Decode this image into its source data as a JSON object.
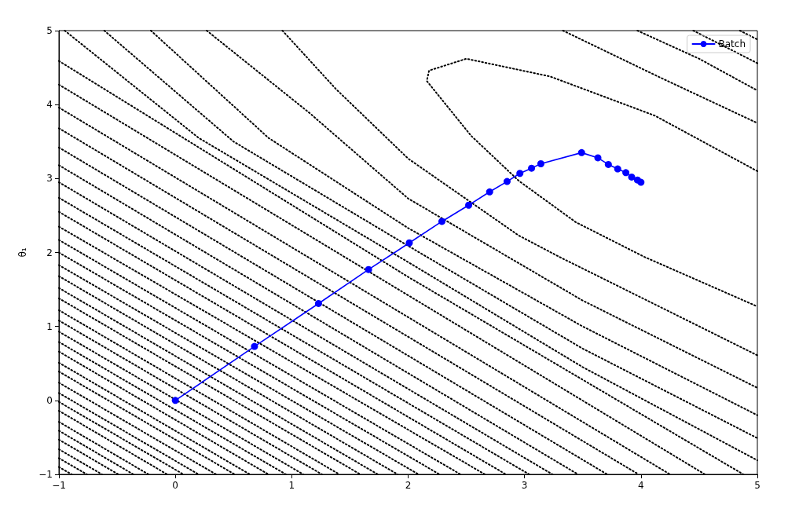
{
  "chart_data": {
    "type": "line",
    "ylabel": "θ₁",
    "xlim": [
      -1,
      5
    ],
    "ylim": [
      -1,
      5
    ],
    "xticks": [
      -1,
      0,
      1,
      2,
      3,
      4,
      5
    ],
    "yticks": [
      -1,
      0,
      1,
      2,
      3,
      4,
      5
    ],
    "grid": false,
    "legend": "top right",
    "series": [
      {
        "color": "#000000",
        "line_style": "dotted",
        "marker": "none",
        "x": [
          5,
          4.12,
          3.22,
          2.5,
          2.18,
          2.16,
          2.54,
          2.95,
          3.44,
          4.03,
          5
        ],
        "values": [
          3.1,
          3.85,
          4.38,
          4.62,
          4.46,
          4.32,
          3.58,
          2.97,
          2.41,
          1.94,
          1.27
        ]
      },
      {
        "color": "#000000",
        "line_style": "dotted",
        "marker": "none",
        "x": [
          0.92,
          1.38,
          2.0,
          2.95,
          3.3,
          5
        ],
        "values": [
          5,
          4.21,
          3.27,
          2.23,
          1.94,
          0.61
        ]
      },
      {
        "color": "#000000",
        "line_style": "dotted",
        "marker": "none",
        "x": [
          3.33,
          4.16,
          5
        ],
        "values": [
          5,
          4.37,
          3.75
        ]
      },
      {
        "color": "#000000",
        "line_style": "dotted",
        "marker": "none",
        "x": [
          0.27,
          1.15,
          2.0,
          3.5,
          5
        ],
        "values": [
          5,
          3.89,
          2.73,
          1.35,
          0.17
        ]
      },
      {
        "color": "#000000",
        "line_style": "dotted",
        "marker": "none",
        "x": [
          3.97,
          4.5,
          5
        ],
        "values": [
          5,
          4.62,
          4.19
        ]
      },
      {
        "color": "#000000",
        "line_style": "dotted",
        "marker": "none",
        "x": [
          -0.21,
          0.8,
          2.0,
          3.5,
          5
        ],
        "values": [
          5,
          3.55,
          2.33,
          1.0,
          -0.2
        ]
      },
      {
        "color": "#000000",
        "line_style": "dotted",
        "marker": "none",
        "x": [
          4.45,
          5
        ],
        "values": [
          5,
          4.56
        ]
      },
      {
        "color": "#000000",
        "line_style": "dotted",
        "marker": "none",
        "x": [
          -0.61,
          0.5,
          2.0,
          3.5,
          5
        ],
        "values": [
          5,
          3.5,
          2.09,
          0.7,
          -0.51
        ]
      },
      {
        "color": "#000000",
        "line_style": "dotted",
        "marker": "none",
        "x": [
          4.85,
          5
        ],
        "values": [
          5,
          4.88
        ]
      },
      {
        "color": "#000000",
        "line_style": "dotted",
        "marker": "none",
        "x": [
          -0.95,
          0.2,
          2.0,
          3.5,
          5
        ],
        "values": [
          5,
          3.55,
          1.87,
          0.45,
          -0.81
        ]
      },
      {
        "color": "#000000",
        "line_style": "dotted",
        "marker": "none",
        "x": [
          -1,
          2.0,
          4.88
        ],
        "values": [
          4.59,
          1.67,
          -1
        ]
      },
      {
        "color": "#000000",
        "line_style": "dotted",
        "marker": "none",
        "x": [
          -1,
          4.55
        ],
        "values": [
          4.27,
          -1
        ]
      },
      {
        "color": "#000000",
        "line_style": "dotted",
        "marker": "none",
        "x": [
          -1,
          4.25
        ],
        "values": [
          3.96,
          -1
        ]
      },
      {
        "color": "#000000",
        "line_style": "dotted",
        "marker": "none",
        "x": [
          -1,
          3.98
        ],
        "values": [
          3.68,
          -1
        ]
      },
      {
        "color": "#000000",
        "line_style": "dotted",
        "marker": "none",
        "x": [
          -1,
          3.71
        ],
        "values": [
          3.42,
          -1
        ]
      },
      {
        "color": "#000000",
        "line_style": "dotted",
        "marker": "none",
        "x": [
          -1,
          3.46
        ],
        "values": [
          3.18,
          -1
        ]
      },
      {
        "color": "#000000",
        "line_style": "dotted",
        "marker": "none",
        "x": [
          -1,
          3.24
        ],
        "values": [
          2.95,
          -1
        ]
      },
      {
        "color": "#000000",
        "line_style": "dotted",
        "marker": "none",
        "x": [
          -1,
          3.04
        ],
        "values": [
          2.74,
          -1
        ]
      },
      {
        "color": "#000000",
        "line_style": "dotted",
        "marker": "none",
        "x": [
          -1,
          2.84
        ],
        "values": [
          2.55,
          -1
        ]
      },
      {
        "color": "#000000",
        "line_style": "dotted",
        "marker": "none",
        "x": [
          -1,
          2.66
        ],
        "values": [
          2.35,
          -1
        ]
      },
      {
        "color": "#000000",
        "line_style": "dotted",
        "marker": "none",
        "x": [
          -1,
          2.45
        ],
        "values": [
          2.17,
          -1
        ]
      },
      {
        "color": "#000000",
        "line_style": "dotted",
        "marker": "none",
        "x": [
          -1,
          2.27
        ],
        "values": [
          2.0,
          -1
        ]
      },
      {
        "color": "#000000",
        "line_style": "dotted",
        "marker": "none",
        "x": [
          -1,
          2.09
        ],
        "values": [
          1.83,
          -1
        ]
      },
      {
        "color": "#000000",
        "line_style": "dotted",
        "marker": "none",
        "x": [
          -1,
          1.91
        ],
        "values": [
          1.68,
          -1
        ]
      },
      {
        "color": "#000000",
        "line_style": "dotted",
        "marker": "none",
        "x": [
          -1,
          1.74
        ],
        "values": [
          1.52,
          -1
        ]
      },
      {
        "color": "#000000",
        "line_style": "dotted",
        "marker": "none",
        "x": [
          -1,
          1.59
        ],
        "values": [
          1.38,
          -1
        ]
      },
      {
        "color": "#000000",
        "line_style": "dotted",
        "marker": "none",
        "x": [
          -1,
          1.41
        ],
        "values": [
          1.22,
          -1
        ]
      },
      {
        "color": "#000000",
        "line_style": "dotted",
        "marker": "none",
        "x": [
          -1,
          1.26
        ],
        "values": [
          1.08,
          -1
        ]
      },
      {
        "color": "#000000",
        "line_style": "dotted",
        "marker": "none",
        "x": [
          -1,
          1.1
        ],
        "values": [
          0.93,
          -1
        ]
      },
      {
        "color": "#000000",
        "line_style": "dotted",
        "marker": "none",
        "x": [
          -1,
          0.95
        ],
        "values": [
          0.79,
          -1
        ]
      },
      {
        "color": "#000000",
        "line_style": "dotted",
        "marker": "none",
        "x": [
          -1,
          0.8
        ],
        "values": [
          0.66,
          -1
        ]
      },
      {
        "color": "#000000",
        "line_style": "dotted",
        "marker": "none",
        "x": [
          -1,
          0.64
        ],
        "values": [
          0.51,
          -1
        ]
      },
      {
        "color": "#000000",
        "line_style": "dotted",
        "marker": "none",
        "x": [
          -1,
          0.51
        ],
        "values": [
          0.39,
          -1
        ]
      },
      {
        "color": "#000000",
        "line_style": "dotted",
        "marker": "none",
        "x": [
          -1,
          0.35
        ],
        "values": [
          0.24,
          -1
        ]
      },
      {
        "color": "#000000",
        "line_style": "dotted",
        "marker": "none",
        "x": [
          -1,
          0.2
        ],
        "values": [
          0.1,
          -1
        ]
      },
      {
        "color": "#000000",
        "line_style": "dotted",
        "marker": "none",
        "x": [
          -1,
          0.07
        ],
        "values": [
          -0.02,
          -1
        ]
      },
      {
        "color": "#000000",
        "line_style": "dotted",
        "marker": "none",
        "x": [
          -1,
          -0.07
        ],
        "values": [
          -0.14,
          -1
        ]
      },
      {
        "color": "#000000",
        "line_style": "dotted",
        "marker": "none",
        "x": [
          -1,
          -0.23
        ],
        "values": [
          -0.29,
          -1
        ]
      },
      {
        "color": "#000000",
        "line_style": "dotted",
        "marker": "none",
        "x": [
          -1,
          -0.36
        ],
        "values": [
          -0.41,
          -1
        ]
      },
      {
        "color": "#000000",
        "line_style": "dotted",
        "marker": "none",
        "x": [
          -1,
          -0.49
        ],
        "values": [
          -0.53,
          -1
        ]
      },
      {
        "color": "#000000",
        "line_style": "dotted",
        "marker": "none",
        "x": [
          -1,
          -0.63
        ],
        "values": [
          -0.66,
          -1
        ]
      },
      {
        "color": "#000000",
        "line_style": "dotted",
        "marker": "none",
        "x": [
          -1,
          -0.76
        ],
        "values": [
          -0.78,
          -1
        ]
      },
      {
        "color": "#000000",
        "line_style": "dotted",
        "marker": "none",
        "x": [
          -1,
          -0.89
        ],
        "values": [
          -0.9,
          -1
        ]
      },
      {
        "name": "Batch",
        "color": "#0000ff",
        "line_style": "solid",
        "marker": "circle",
        "x": [
          0,
          0.68,
          1.23,
          1.66,
          2.01,
          2.29,
          2.52,
          2.7,
          2.85,
          2.96,
          3.06,
          3.14,
          3.49,
          3.63,
          3.72,
          3.8,
          3.87,
          3.92,
          3.97,
          4.0
        ],
        "values": [
          0,
          0.73,
          1.31,
          1.77,
          2.13,
          2.42,
          2.64,
          2.82,
          2.96,
          3.07,
          3.14,
          3.2,
          3.35,
          3.28,
          3.19,
          3.13,
          3.08,
          3.02,
          2.98,
          2.95
        ]
      }
    ]
  }
}
